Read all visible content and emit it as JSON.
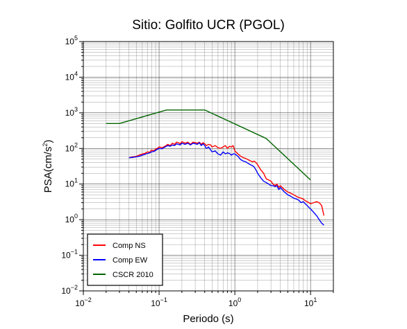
{
  "chart_data": {
    "type": "line",
    "title": "Sitio: Golfito UCR (PGOL)",
    "xlabel": "Periodo (s)",
    "ylabel_base": "PSA(cm/s",
    "ylabel_sup": "2",
    "ylabel_end": ")",
    "x_scale": "log",
    "y_scale": "log",
    "xlim": [
      0.01,
      20
    ],
    "ylim": [
      0.01,
      100000
    ],
    "grid": true,
    "legend_position": "bottom-left",
    "x_ticks": [
      {
        "value": 0.01,
        "base": "10",
        "exp": "−2"
      },
      {
        "value": 0.1,
        "base": "10",
        "exp": "−1"
      },
      {
        "value": 1,
        "base": "10",
        "exp": "0"
      },
      {
        "value": 10,
        "base": "10",
        "exp": "1"
      }
    ],
    "y_ticks": [
      {
        "value": 0.01,
        "base": "10",
        "exp": "−2"
      },
      {
        "value": 0.1,
        "base": "10",
        "exp": "−1"
      },
      {
        "value": 1,
        "base": "10",
        "exp": "0"
      },
      {
        "value": 10,
        "base": "10",
        "exp": "1"
      },
      {
        "value": 100,
        "base": "10",
        "exp": "2"
      },
      {
        "value": 1000,
        "base": "10",
        "exp": "3"
      },
      {
        "value": 10000,
        "base": "10",
        "exp": "4"
      },
      {
        "value": 100000,
        "base": "10",
        "exp": "5"
      }
    ],
    "series": [
      {
        "name": "Comp NS",
        "color": "#ff0000",
        "x": [
          0.04,
          0.045,
          0.05,
          0.055,
          0.06,
          0.065,
          0.07,
          0.075,
          0.08,
          0.085,
          0.09,
          0.095,
          0.1,
          0.11,
          0.12,
          0.13,
          0.14,
          0.15,
          0.16,
          0.17,
          0.18,
          0.19,
          0.2,
          0.22,
          0.24,
          0.26,
          0.28,
          0.3,
          0.32,
          0.34,
          0.36,
          0.38,
          0.4,
          0.42,
          0.45,
          0.48,
          0.5,
          0.55,
          0.6,
          0.65,
          0.7,
          0.75,
          0.8,
          0.85,
          0.9,
          0.95,
          1.0,
          1.1,
          1.2,
          1.3,
          1.4,
          1.5,
          1.6,
          1.7,
          1.8,
          1.9,
          2.0,
          2.2,
          2.4,
          2.6,
          2.8,
          3.0,
          3.2,
          3.4,
          3.6,
          3.8,
          4.0,
          4.5,
          5.0,
          5.5,
          6.0,
          6.5,
          7.0,
          7.5,
          8.0,
          8.5,
          9.0,
          9.5,
          10.0,
          11.0,
          12.0,
          13.0,
          14.0,
          15.0
        ],
        "values": [
          55,
          58,
          60,
          65,
          70,
          72,
          80,
          78,
          90,
          85,
          95,
          100,
          110,
          105,
          115,
          130,
          120,
          140,
          130,
          150,
          145,
          135,
          155,
          140,
          150,
          130,
          150,
          145,
          140,
          150,
          130,
          145,
          135,
          120,
          130,
          125,
          110,
          120,
          105,
          100,
          110,
          120,
          100,
          115,
          110,
          120,
          85,
          70,
          60,
          55,
          52,
          48,
          45,
          42,
          44,
          40,
          35,
          25,
          20,
          14,
          13,
          12,
          10,
          9,
          10,
          8,
          9,
          7,
          6,
          5.5,
          5,
          4.5,
          4.2,
          4.0,
          3.8,
          3.4,
          3.2,
          3.0,
          2.8,
          3.0,
          3.2,
          3.0,
          2.5,
          1.3
        ]
      },
      {
        "name": "Comp EW",
        "color": "#0000ff",
        "x": [
          0.04,
          0.045,
          0.05,
          0.055,
          0.06,
          0.065,
          0.07,
          0.075,
          0.08,
          0.085,
          0.09,
          0.095,
          0.1,
          0.11,
          0.12,
          0.13,
          0.14,
          0.15,
          0.16,
          0.17,
          0.18,
          0.19,
          0.2,
          0.22,
          0.24,
          0.26,
          0.28,
          0.3,
          0.32,
          0.34,
          0.36,
          0.38,
          0.4,
          0.42,
          0.45,
          0.48,
          0.5,
          0.55,
          0.6,
          0.65,
          0.7,
          0.75,
          0.8,
          0.85,
          0.9,
          0.95,
          1.0,
          1.1,
          1.2,
          1.3,
          1.4,
          1.5,
          1.6,
          1.7,
          1.8,
          1.9,
          2.0,
          2.2,
          2.4,
          2.6,
          2.8,
          3.0,
          3.2,
          3.4,
          3.6,
          3.8,
          4.0,
          4.5,
          5.0,
          5.5,
          6.0,
          6.5,
          7.0,
          7.5,
          8.0,
          8.5,
          9.0,
          9.5,
          10.0,
          11.0,
          12.0,
          13.0,
          14.0,
          15.0
        ],
        "values": [
          55,
          56,
          58,
          60,
          65,
          68,
          72,
          75,
          80,
          82,
          88,
          95,
          100,
          98,
          110,
          120,
          115,
          125,
          120,
          135,
          130,
          125,
          140,
          130,
          140,
          125,
          140,
          135,
          130,
          145,
          120,
          135,
          120,
          100,
          110,
          90,
          80,
          85,
          70,
          65,
          80,
          70,
          75,
          72,
          65,
          70,
          70,
          60,
          48,
          44,
          42,
          38,
          35,
          33,
          30,
          25,
          20,
          15,
          12,
          11,
          10,
          9,
          9,
          8.5,
          9,
          7,
          8,
          6,
          5,
          4.5,
          4,
          3.8,
          3.5,
          3.0,
          3.2,
          2.8,
          2.5,
          2.2,
          2.0,
          1.6,
          1.3,
          1.0,
          0.8,
          0.7
        ]
      },
      {
        "name": "CSCR 2010",
        "color": "#006400",
        "x": [
          0.02,
          0.03,
          0.125,
          0.4,
          2.6,
          10
        ],
        "values": [
          500,
          500,
          1200,
          1200,
          190,
          13
        ]
      }
    ]
  }
}
